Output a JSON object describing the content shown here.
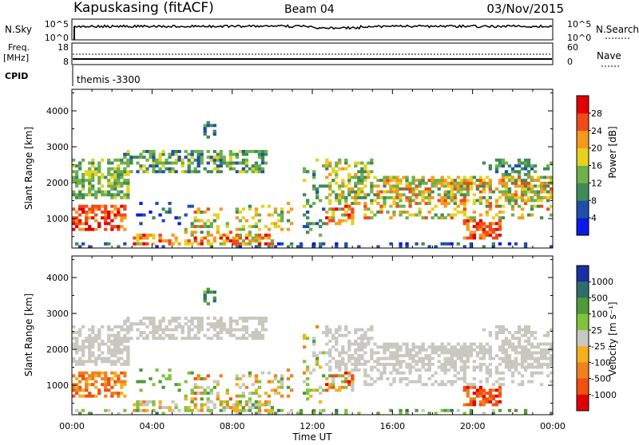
{
  "header": {
    "station": "Kapuskasing (fitACF)",
    "beam": "Beam 04",
    "date": "03/Nov/2015"
  },
  "params": {
    "nsky_label": "N.Sky",
    "nsky_ticks": [
      "10^5",
      "10^0"
    ],
    "nsearch_label": "N.Search",
    "nsearch_ticks": [
      "10^5",
      "10^0"
    ],
    "freq_label": "Freq.",
    "freq_unit": "[MHz]",
    "freq_ticks": [
      "18",
      "8"
    ],
    "nave_label": "Nave",
    "nave_ticks": [
      "60",
      "0"
    ],
    "cpid_label": "CPID",
    "cpid_value": "themis -3300"
  },
  "chart_data": [
    {
      "type": "heatmap",
      "name": "power",
      "xlabel": "",
      "ylabel": "Slant Range [km]",
      "y_ticks": [
        "1000",
        "2000",
        "3000",
        "4000"
      ],
      "ylim": [
        180,
        4600
      ],
      "x_ticks": [
        "00:00",
        "04:00",
        "08:00",
        "12:00",
        "16:00",
        "20:00",
        "00:00"
      ],
      "xlim_hours": [
        0,
        24
      ],
      "colorbar_label": "Power [dB]",
      "colorbar_ticks": [
        "4",
        "8",
        "12",
        "16",
        "20",
        "24",
        "28"
      ],
      "colors": [
        "#0a1ae6",
        "#1f4fa8",
        "#3f8a5a",
        "#6fb04a",
        "#e6d21e",
        "#f59a1e",
        "#f04a1a",
        "#e00000"
      ]
    },
    {
      "type": "heatmap",
      "name": "velocity",
      "xlabel": "Time UT",
      "ylabel": "Slant Range [km]",
      "y_ticks": [
        "1000",
        "2000",
        "3000",
        "4000"
      ],
      "ylim": [
        180,
        4600
      ],
      "x_ticks": [
        "00:00",
        "04:00",
        "08:00",
        "12:00",
        "16:00",
        "20:00",
        "00:00"
      ],
      "xlim_hours": [
        0,
        24
      ],
      "colorbar_label": "Velocity [m s⁻¹]",
      "colorbar_ticks": [
        "1000",
        "500",
        "100",
        "25",
        "-25",
        "-100",
        "-500",
        "-1000"
      ],
      "colors": [
        "#1c2fa0",
        "#2f6d6a",
        "#4f9a3a",
        "#7fc43a",
        "#c8c8c0",
        "#f5b020",
        "#f08020",
        "#f05010",
        "#e00000"
      ]
    }
  ],
  "echo_regions": [
    {
      "t0": 0.0,
      "t1": 2.9,
      "r0": 1550,
      "r1": 2700,
      "p": [
        2,
        4
      ],
      "v": [
        4,
        4
      ],
      "d": 0.55
    },
    {
      "t0": 0.0,
      "t1": 2.8,
      "r0": 700,
      "r1": 1400,
      "p": [
        5,
        7
      ],
      "v": [
        5,
        7
      ],
      "d": 0.6
    },
    {
      "t0": 2.5,
      "t1": 9.8,
      "r0": 2300,
      "r1": 2950,
      "p": [
        1,
        4
      ],
      "v": [
        4,
        4
      ],
      "d": 0.55
    },
    {
      "t0": 3.0,
      "t1": 6.0,
      "r0": 800,
      "r1": 1450,
      "p": [
        0,
        2
      ],
      "v": [
        2,
        3
      ],
      "d": 0.15
    },
    {
      "t0": 3.0,
      "t1": 10.0,
      "r0": 280,
      "r1": 560,
      "p": [
        3,
        7
      ],
      "v": [
        2,
        6
      ],
      "d": 0.55
    },
    {
      "t0": 5.5,
      "t1": 9.0,
      "r0": 300,
      "r1": 1300,
      "p": [
        2,
        6
      ],
      "v": [
        2,
        7
      ],
      "d": 0.3
    },
    {
      "t0": 6.6,
      "t1": 7.2,
      "r0": 3250,
      "r1": 3750,
      "p": [
        1,
        3
      ],
      "v": [
        1,
        3
      ],
      "d": 0.5
    },
    {
      "t0": 8.5,
      "t1": 11.0,
      "r0": 700,
      "r1": 1500,
      "p": [
        2,
        5
      ],
      "v": [
        2,
        6
      ],
      "d": 0.3
    },
    {
      "t0": 11.6,
      "t1": 12.6,
      "r0": 500,
      "r1": 2700,
      "p": [
        1,
        4
      ],
      "v": [
        2,
        6
      ],
      "d": 0.25
    },
    {
      "t0": 12.6,
      "t1": 15.0,
      "r0": 1400,
      "r1": 2700,
      "p": [
        2,
        5
      ],
      "v": [
        4,
        4
      ],
      "d": 0.5
    },
    {
      "t0": 12.5,
      "t1": 14.0,
      "r0": 800,
      "r1": 1500,
      "p": [
        3,
        7
      ],
      "v": [
        2,
        8
      ],
      "d": 0.5
    },
    {
      "t0": 14.5,
      "t1": 24.0,
      "r0": 1500,
      "r1": 2200,
      "p": [
        2,
        6
      ],
      "v": [
        4,
        4
      ],
      "d": 0.6
    },
    {
      "t0": 14.5,
      "t1": 24.0,
      "r0": 1000,
      "r1": 1600,
      "p": [
        2,
        6
      ],
      "v": [
        4,
        4
      ],
      "d": 0.35
    },
    {
      "t0": 19.5,
      "t1": 21.5,
      "r0": 450,
      "r1": 1100,
      "p": [
        5,
        7
      ],
      "v": [
        6,
        8
      ],
      "d": 0.7
    },
    {
      "t0": 18.0,
      "t1": 24.0,
      "r0": 1050,
      "r1": 1400,
      "p": [
        4,
        6
      ],
      "v": [
        5,
        7
      ],
      "d": 0.5
    },
    {
      "t0": 20.5,
      "t1": 24.0,
      "r0": 1400,
      "r1": 2700,
      "p": [
        1,
        3
      ],
      "v": [
        4,
        4
      ],
      "d": 0.3
    },
    {
      "t0": 0.0,
      "t1": 24.0,
      "r0": 180,
      "r1": 350,
      "p": [
        0,
        2
      ],
      "v": [
        1,
        4
      ],
      "d": 0.2
    }
  ]
}
